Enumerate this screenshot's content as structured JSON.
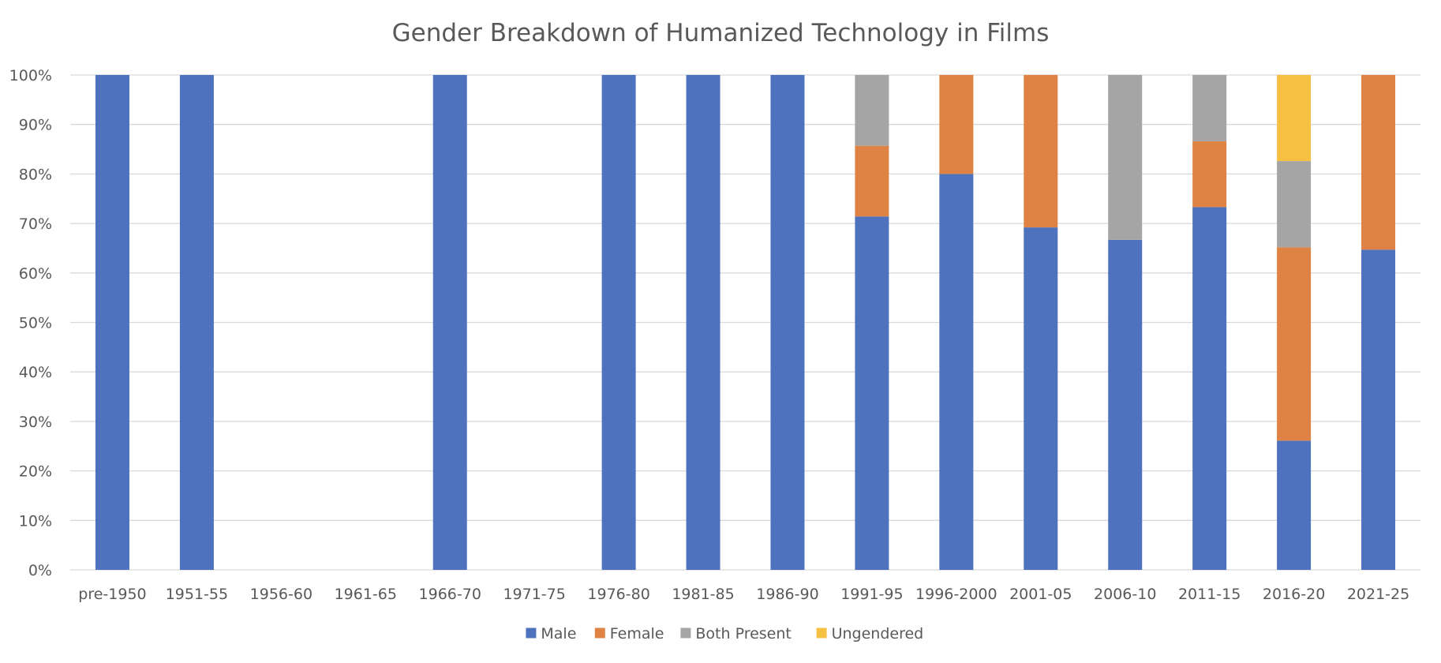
{
  "chart_data": {
    "type": "bar",
    "stacked": true,
    "percent_stacked": true,
    "title": "Gender Breakdown of Humanized Technology in Films",
    "categories": [
      "pre-1950",
      "1951-55",
      "1956-60",
      "1961-65",
      "1966-70",
      "1971-75",
      "1976-80",
      "1981-85",
      "1986-90",
      "1991-95",
      "1996-2000",
      "2001-05",
      "2006-10",
      "2011-15",
      "2016-20",
      "2021-25"
    ],
    "series": [
      {
        "name": "Male",
        "color": "#4f72be",
        "values": [
          100,
          100,
          0,
          0,
          100,
          0,
          100,
          100,
          100,
          71.4,
          80,
          69.2,
          66.7,
          73.3,
          26.1,
          64.7
        ]
      },
      {
        "name": "Female",
        "color": "#df8344",
        "values": [
          0,
          0,
          0,
          0,
          0,
          0,
          0,
          0,
          0,
          14.3,
          20,
          30.8,
          0,
          13.3,
          39.1,
          35.3
        ]
      },
      {
        "name": "Both Present",
        "color": "#a5a5a5",
        "values": [
          0,
          0,
          0,
          0,
          0,
          0,
          0,
          0,
          0,
          14.3,
          0,
          0,
          33.3,
          13.4,
          17.4,
          0
        ]
      },
      {
        "name": "Ungendered",
        "color": "#f6c143",
        "values": [
          0,
          0,
          0,
          0,
          0,
          0,
          0,
          0,
          0,
          0,
          0,
          0,
          0,
          0,
          17.4,
          0
        ]
      }
    ],
    "y_ticks": [
      "0%",
      "10%",
      "20%",
      "30%",
      "40%",
      "50%",
      "60%",
      "70%",
      "80%",
      "90%",
      "100%"
    ],
    "ylim": [
      0,
      100
    ],
    "grid": true,
    "legend_position": "bottom"
  }
}
